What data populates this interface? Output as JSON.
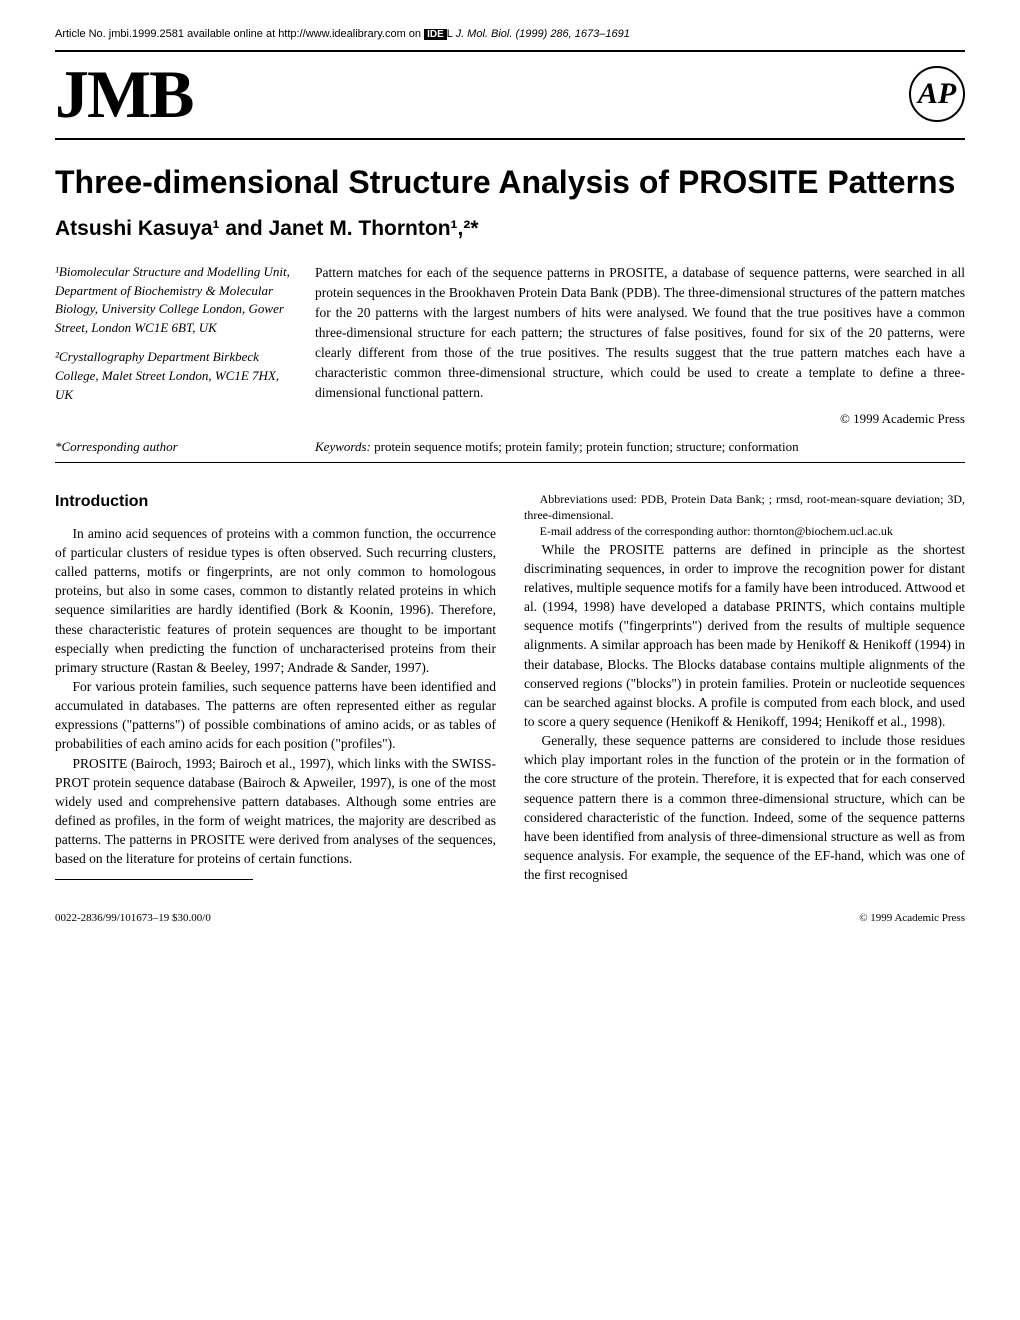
{
  "header": {
    "article_no": "Article No. jmbi.1999.2581 available online at http://www.idealibrary.com on ",
    "ide_label": "IDE",
    "l_suffix": "L",
    "journal_ref": "J. Mol. Biol. (1999) 286, 1673–1691",
    "jmb_logo": "JMB",
    "ap_logo": "AP"
  },
  "title": "Three-dimensional Structure Analysis of PROSITE Patterns",
  "authors": "Atsushi Kasuya¹ and Janet M. Thornton¹,²*",
  "affiliations": [
    "¹Biomolecular Structure and Modelling Unit, Department of Biochemistry & Molecular Biology, University College London, Gower Street, London WC1E 6BT, UK",
    "²Crystallography Department Birkbeck College, Malet Street London, WC1E 7HX, UK"
  ],
  "abstract": "Pattern matches for each of the sequence patterns in PROSITE, a database of sequence patterns, were searched in all protein sequences in the Brookhaven Protein Data Bank (PDB). The three-dimensional structures of the pattern matches for the 20 patterns with the largest numbers of hits were analysed. We found that the true positives have a common three-dimensional structure for each pattern; the structures of false positives, found for six of the 20 patterns, were clearly different from those of the true positives. The results suggest that the true pattern matches each have a characteristic common three-dimensional structure, which could be used to create a template to define a three-dimensional functional pattern.",
  "copyright": "© 1999 Academic Press",
  "keywords_label": "Keywords:",
  "keywords": " protein sequence motifs; protein family; protein function; structure; conformation",
  "corresponding": "*Corresponding author",
  "section_heading": "Introduction",
  "paragraphs": [
    "In amino acid sequences of proteins with a common function, the occurrence of particular clusters of residue types is often observed. Such recurring clusters, called patterns, motifs or fingerprints, are not only common to homologous proteins, but also in some cases, common to distantly related proteins in which sequence similarities are hardly identified (Bork & Koonin, 1996). Therefore, these characteristic features of protein sequences are thought to be important especially when predicting the function of uncharacterised proteins from their primary structure (Rastan & Beeley, 1997; Andrade & Sander, 1997).",
    "For various protein families, such sequence patterns have been identified and accumulated in databases. The patterns are often represented either as regular expressions (\"patterns\") of possible combinations of amino acids, or as tables of probabilities of each amino acids for each position (\"profiles\").",
    "PROSITE (Bairoch, 1993; Bairoch et al., 1997), which links with the SWISS-PROT protein sequence database (Bairoch & Apweiler, 1997), is one of the most widely used and comprehensive pattern databases. Although some entries are defined as profiles, in the form of weight matrices, the majority are described as patterns. The patterns in PROSITE were derived from analyses of the sequences, based on the literature for proteins of certain functions.",
    "While the PROSITE patterns are defined in principle as the shortest discriminating sequences, in order to improve the recognition power for distant relatives, multiple sequence motifs for a family have been introduced. Attwood et al. (1994, 1998) have developed a database PRINTS, which contains multiple sequence motifs (\"fingerprints\") derived from the results of multiple sequence alignments. A similar approach has been made by Henikoff & Henikoff (1994) in their database, Blocks. The Blocks database contains multiple alignments of the conserved regions (\"blocks\") in protein families. Protein or nucleotide sequences can be searched against blocks. A profile is computed from each block, and used to score a query sequence (Henikoff & Henikoff, 1994; Henikoff et al., 1998).",
    "Generally, these sequence patterns are considered to include those residues which play important roles in the function of the protein or in the formation of the core structure of the protein. Therefore, it is expected that for each conserved sequence pattern there is a common three-dimensional structure, which can be considered characteristic of the function. Indeed, some of the sequence patterns have been identified from analysis of three-dimensional structure as well as from sequence analysis. For example, the sequence of the EF-hand, which was one of the first recognised"
  ],
  "footnotes": [
    "Abbreviations used: PDB, Protein Data Bank; ; rmsd, root-mean-square deviation; 3D, three-dimensional.",
    "E-mail address of the corresponding author: thornton@biochem.ucl.ac.uk"
  ],
  "footer": {
    "left": "0022-2836/99/101673–19 $30.00/0",
    "right": "© 1999 Academic Press"
  }
}
